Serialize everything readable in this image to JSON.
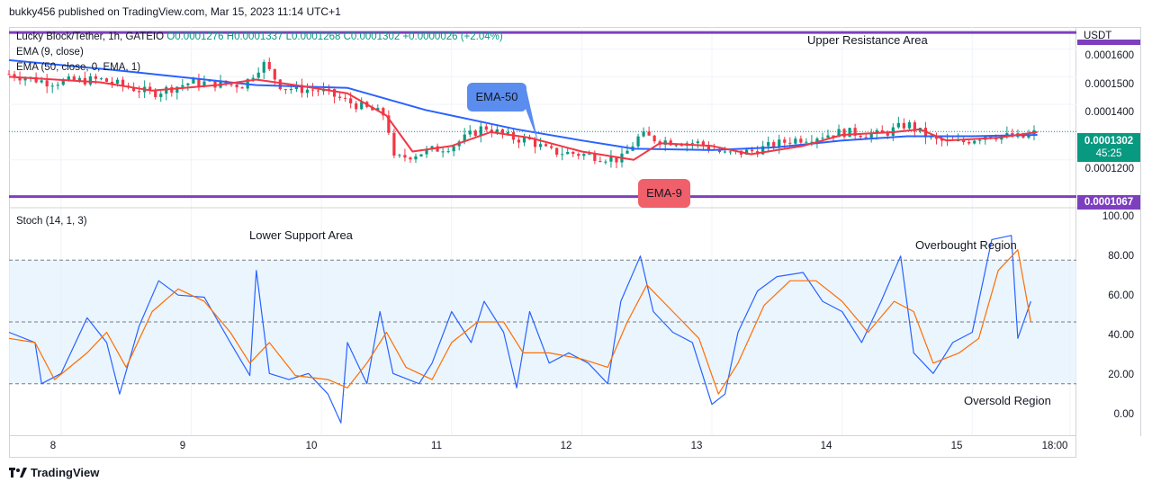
{
  "header": {
    "text": "bukky456 published on TradingView.com, Mar 15, 2023 11:14 UTC+1"
  },
  "legend": {
    "symbol_line_prefix": "Lucky Block/Tether, 1h, GATEIO",
    "ohlc": "O0.0001276  H0.0001337  L0.0001268  C0.0001302  +0.0000026 (+2.04%)",
    "ema9": "EMA (9, close)",
    "ema50": "EMA (50, close, 0, EMA, 1)",
    "stoch": "Stoch (14, 1, 3)"
  },
  "annotations": {
    "upper_resistance": "Upper Resistance Area",
    "lower_support": "Lower Support Area",
    "overbought": "Overbought Region",
    "oversold": "Oversold Region",
    "ema50_callout": "EMA-50",
    "ema9_callout": "EMA-9"
  },
  "price_axis": {
    "unit": "USDT",
    "ticks": [
      "0.0001600",
      "0.0001500",
      "0.0001400",
      "0.0001200"
    ],
    "current_price": "0.0001302",
    "countdown": "45:25",
    "support_level": "0.0001067"
  },
  "stoch_axis": {
    "ticks": [
      "100.00",
      "80.00",
      "60.00",
      "40.00",
      "20.00",
      "0.00"
    ]
  },
  "time_axis": {
    "ticks": [
      "8",
      "9",
      "10",
      "11",
      "12",
      "13",
      "14",
      "15",
      "18:00"
    ]
  },
  "footer": {
    "brand": "TradingView"
  },
  "colors": {
    "ema50": "#2962ff",
    "ema9": "#f23645",
    "level_line": "#7e3fbf",
    "up_candle": "#089981",
    "down_candle": "#f23645",
    "stoch_k": "#2962ff",
    "stoch_d": "#ff6d00",
    "stoch_band": "#e3f2fd",
    "current_price_badge": "#089981",
    "support_badge": "#7e3fbf",
    "ema50_callout": "#5b8def",
    "ema9_callout": "#f0606b"
  },
  "chart_data": [
    {
      "type": "candlestick",
      "title": "Lucky Block/Tether, 1h, GATEIO",
      "ylim": [
        0.000103,
        0.000168
      ],
      "x_range_days": [
        7.6,
        15.8
      ],
      "levels": {
        "upper_resistance": 0.000166,
        "lower_support": 0.0001067
      },
      "ohlc_last": {
        "o": 0.0001276,
        "h": 0.0001337,
        "l": 0.0001268,
        "c": 0.0001302
      },
      "ema50": [
        [
          7.6,
          0.000156
        ],
        [
          8.5,
          0.000152
        ],
        [
          9.5,
          0.000147
        ],
        [
          10.2,
          0.000146
        ],
        [
          10.8,
          0.000138
        ],
        [
          11.5,
          0.000131
        ],
        [
          12.0,
          0.000127
        ],
        [
          12.4,
          0.000124
        ],
        [
          13.0,
          0.0001235
        ],
        [
          13.5,
          0.0001245
        ],
        [
          14.0,
          0.000127
        ],
        [
          14.5,
          0.0001285
        ],
        [
          15.0,
          0.0001285
        ],
        [
          15.5,
          0.000129
        ]
      ],
      "ema9": [
        [
          7.6,
          0.00015
        ],
        [
          8.3,
          0.000148
        ],
        [
          8.7,
          0.000145
        ],
        [
          9.2,
          0.000147
        ],
        [
          9.5,
          0.000149
        ],
        [
          9.8,
          0.000147
        ],
        [
          10.2,
          0.000144
        ],
        [
          10.5,
          0.000136
        ],
        [
          10.7,
          0.000123
        ],
        [
          11.0,
          0.000125
        ],
        [
          11.3,
          0.00013
        ],
        [
          11.6,
          0.000128
        ],
        [
          12.0,
          0.000123
        ],
        [
          12.4,
          0.00012
        ],
        [
          12.6,
          0.000126
        ],
        [
          13.0,
          0.000125
        ],
        [
          13.3,
          0.000122
        ],
        [
          13.7,
          0.000125
        ],
        [
          14.0,
          0.000129
        ],
        [
          14.4,
          0.00013
        ],
        [
          14.6,
          0.000131
        ],
        [
          14.8,
          0.000127
        ],
        [
          15.2,
          0.000128
        ],
        [
          15.5,
          0.00013
        ]
      ],
      "close_path": [
        [
          7.6,
          0.000151
        ],
        [
          7.9,
          0.000148
        ],
        [
          8.3,
          0.000149
        ],
        [
          8.7,
          0.000144
        ],
        [
          9.0,
          0.000148
        ],
        [
          9.4,
          0.000147
        ],
        [
          9.55,
          0.000155
        ],
        [
          9.7,
          0.000146
        ],
        [
          10.0,
          0.000145
        ],
        [
          10.2,
          0.000141
        ],
        [
          10.5,
          0.000136
        ],
        [
          10.55,
          0.00012
        ],
        [
          10.8,
          0.000123
        ],
        [
          11.0,
          0.000125
        ],
        [
          11.25,
          0.000132
        ],
        [
          11.45,
          0.000128
        ],
        [
          11.6,
          0.000127
        ],
        [
          11.75,
          0.000123
        ],
        [
          12.0,
          0.000122
        ],
        [
          12.3,
          0.00012
        ],
        [
          12.45,
          0.000129
        ],
        [
          12.6,
          0.000127
        ],
        [
          12.9,
          0.000126
        ],
        [
          13.1,
          0.000122
        ],
        [
          13.3,
          0.000123
        ],
        [
          13.6,
          0.000127
        ],
        [
          14.0,
          0.00013
        ],
        [
          14.3,
          0.000129
        ],
        [
          14.5,
          0.000133
        ],
        [
          14.7,
          0.000127
        ],
        [
          14.9,
          0.000126
        ],
        [
          15.1,
          0.000129
        ],
        [
          15.4,
          0.000128
        ],
        [
          15.5,
          0.0001302
        ]
      ]
    },
    {
      "type": "line",
      "title": "Stoch (14, 1, 3)",
      "ylim": [
        -5,
        105
      ],
      "bands": {
        "upper": 80,
        "middle": 50,
        "lower": 20
      },
      "series": [
        {
          "name": "%K",
          "points": [
            [
              7.6,
              45
            ],
            [
              7.8,
              40
            ],
            [
              7.85,
              20
            ],
            [
              8.0,
              25
            ],
            [
              8.2,
              52
            ],
            [
              8.35,
              40
            ],
            [
              8.45,
              15
            ],
            [
              8.6,
              48
            ],
            [
              8.75,
              70
            ],
            [
              8.9,
              63
            ],
            [
              9.1,
              62
            ],
            [
              9.3,
              40
            ],
            [
              9.45,
              24
            ],
            [
              9.5,
              75
            ],
            [
              9.6,
              25
            ],
            [
              9.75,
              22
            ],
            [
              9.9,
              25
            ],
            [
              10.05,
              15
            ],
            [
              10.15,
              1
            ],
            [
              10.2,
              40
            ],
            [
              10.35,
              20
            ],
            [
              10.45,
              55
            ],
            [
              10.55,
              25
            ],
            [
              10.75,
              20
            ],
            [
              10.85,
              30
            ],
            [
              11.0,
              55
            ],
            [
              11.15,
              40
            ],
            [
              11.25,
              60
            ],
            [
              11.4,
              45
            ],
            [
              11.5,
              18
            ],
            [
              11.6,
              55
            ],
            [
              11.75,
              30
            ],
            [
              11.9,
              35
            ],
            [
              12.05,
              30
            ],
            [
              12.2,
              20
            ],
            [
              12.3,
              60
            ],
            [
              12.45,
              82
            ],
            [
              12.55,
              55
            ],
            [
              12.7,
              45
            ],
            [
              12.85,
              40
            ],
            [
              13.0,
              10
            ],
            [
              13.1,
              15
            ],
            [
              13.2,
              45
            ],
            [
              13.35,
              65
            ],
            [
              13.5,
              72
            ],
            [
              13.7,
              74
            ],
            [
              13.85,
              60
            ],
            [
              14.0,
              55
            ],
            [
              14.15,
              40
            ],
            [
              14.3,
              60
            ],
            [
              14.45,
              82
            ],
            [
              14.55,
              35
            ],
            [
              14.7,
              25
            ],
            [
              14.85,
              40
            ],
            [
              15.0,
              45
            ],
            [
              15.15,
              90
            ],
            [
              15.3,
              92
            ],
            [
              15.35,
              42
            ],
            [
              15.45,
              60
            ]
          ]
        },
        {
          "name": "%D",
          "points": [
            [
              7.6,
              42
            ],
            [
              7.8,
              40
            ],
            [
              7.95,
              22
            ],
            [
              8.2,
              35
            ],
            [
              8.35,
              45
            ],
            [
              8.5,
              28
            ],
            [
              8.7,
              55
            ],
            [
              8.9,
              66
            ],
            [
              9.1,
              60
            ],
            [
              9.3,
              45
            ],
            [
              9.45,
              30
            ],
            [
              9.6,
              40
            ],
            [
              9.8,
              24
            ],
            [
              10.05,
              22
            ],
            [
              10.2,
              18
            ],
            [
              10.35,
              30
            ],
            [
              10.5,
              45
            ],
            [
              10.65,
              28
            ],
            [
              10.85,
              22
            ],
            [
              11.0,
              40
            ],
            [
              11.2,
              50
            ],
            [
              11.4,
              50
            ],
            [
              11.55,
              35
            ],
            [
              11.75,
              35
            ],
            [
              12.0,
              32
            ],
            [
              12.2,
              28
            ],
            [
              12.35,
              50
            ],
            [
              12.5,
              68
            ],
            [
              12.7,
              55
            ],
            [
              12.9,
              42
            ],
            [
              13.05,
              15
            ],
            [
              13.2,
              30
            ],
            [
              13.4,
              58
            ],
            [
              13.6,
              70
            ],
            [
              13.8,
              70
            ],
            [
              14.0,
              60
            ],
            [
              14.2,
              45
            ],
            [
              14.4,
              60
            ],
            [
              14.55,
              55
            ],
            [
              14.7,
              30
            ],
            [
              14.9,
              35
            ],
            [
              15.05,
              42
            ],
            [
              15.2,
              75
            ],
            [
              15.35,
              85
            ],
            [
              15.45,
              50
            ]
          ]
        }
      ]
    }
  ]
}
